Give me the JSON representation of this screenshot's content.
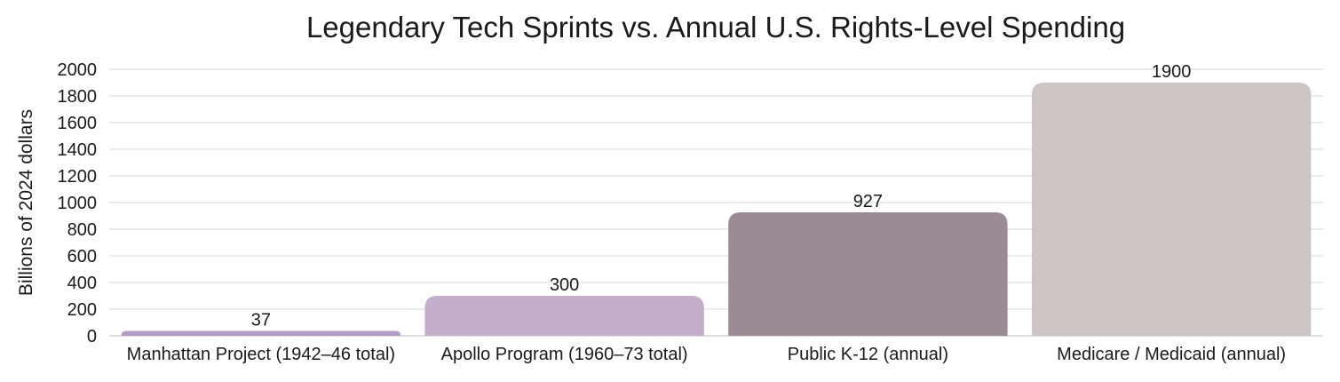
{
  "chart_data": {
    "type": "bar",
    "title": "Legendary Tech Sprints vs. Annual U.S. Rights-Level Spending",
    "xlabel": "",
    "ylabel": "Billions of 2024 dollars",
    "categories": [
      "Manhattan Project (1942–46 total)",
      "Apollo Program (1960–73 total)",
      "Public K-12 (annual)",
      "Medicare / Medicaid (annual)"
    ],
    "values": [
      37,
      300,
      927,
      1900
    ],
    "data_labels": [
      "37",
      "300",
      "927",
      "1900"
    ],
    "bar_colors": [
      "#b49cc6",
      "#c3afc9",
      "#9b8b95",
      "#cbc5c6"
    ],
    "ylim": [
      0,
      2000
    ],
    "yticks": [
      "0",
      "200",
      "400",
      "600",
      "800",
      "1000",
      "1200",
      "1400",
      "1600",
      "1800",
      "2000"
    ],
    "grid": true,
    "legend": "none"
  }
}
